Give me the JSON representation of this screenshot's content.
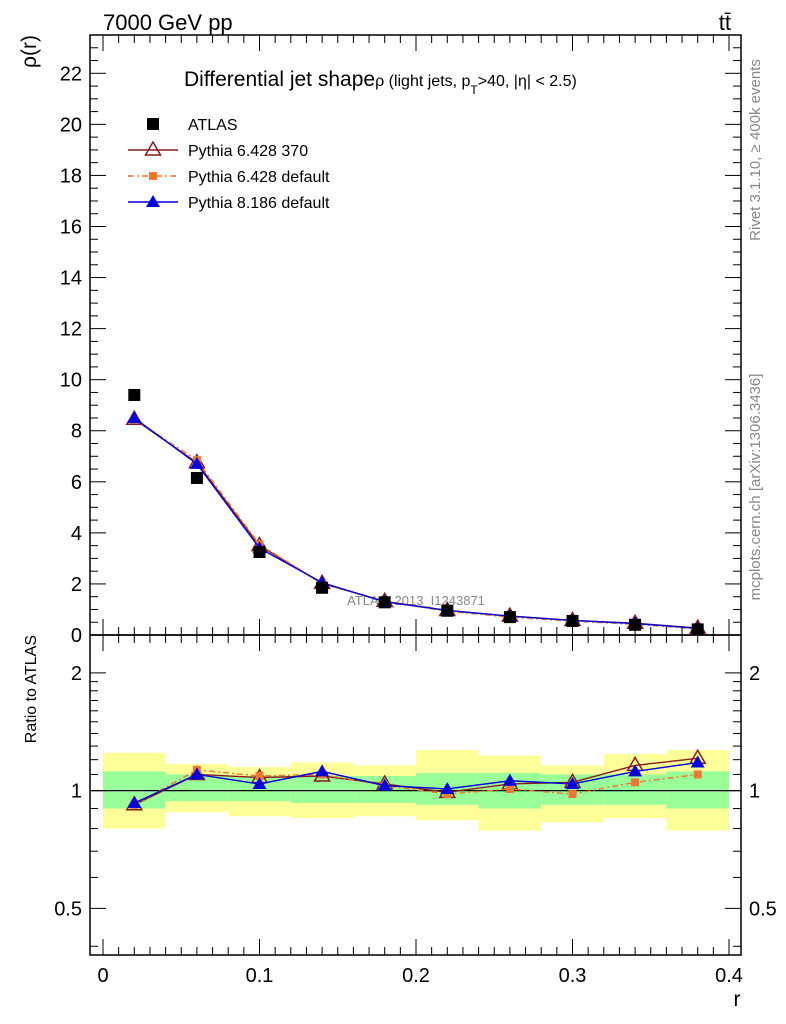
{
  "header": {
    "energy_label": "7000 GeV pp",
    "process_label": "tt̄"
  },
  "side_labels": {
    "rivet": "Rivet 3.1.10, ≥ 400k events",
    "mcplots": "mcplots.cern.ch [arXiv:1306.3436]"
  },
  "chart_data": [
    {
      "type": "line",
      "title_main": "Differential jet shape",
      "title_sub": "ρ (light jets, p",
      "title_sub_sub": "T",
      "title_sub_end": ">40, |η| < 2.5)",
      "ylabel": "ρ(r)",
      "xlim": [
        0,
        0.4
      ],
      "ylim": [
        0,
        23.5
      ],
      "y_ticks": [
        "0",
        "2",
        "4",
        "6",
        "8",
        "10",
        "12",
        "14",
        "16",
        "18",
        "20",
        "22"
      ],
      "y_tick_values": [
        0,
        2,
        4,
        6,
        8,
        10,
        12,
        14,
        16,
        18,
        20,
        22
      ],
      "watermark": "ATLAS_2013_I1243871",
      "legend_position": "top-left",
      "series": [
        {
          "name": "ATLAS",
          "marker": "square",
          "color": "#000000",
          "x": [
            0.02,
            0.06,
            0.1,
            0.14,
            0.18,
            0.22,
            0.26,
            0.3,
            0.34,
            0.38
          ],
          "values": [
            9.4,
            6.15,
            3.25,
            1.85,
            1.28,
            0.95,
            0.7,
            0.55,
            0.4,
            0.22
          ]
        },
        {
          "name": "Pythia 6.428 370",
          "marker": "open-triangle",
          "color": "#8b1a1a",
          "line": "solid",
          "x": [
            0.02,
            0.06,
            0.1,
            0.14,
            0.18,
            0.22,
            0.26,
            0.3,
            0.34,
            0.38
          ],
          "values": [
            8.45,
            6.75,
            3.5,
            2.02,
            1.32,
            0.96,
            0.74,
            0.57,
            0.46,
            0.27
          ]
        },
        {
          "name": "Pythia 6.428 default",
          "marker": "square-small",
          "color": "#ee7733",
          "line": "dashdot",
          "x": [
            0.02,
            0.06,
            0.1,
            0.14,
            0.18,
            0.22,
            0.26,
            0.3,
            0.34,
            0.38
          ],
          "values": [
            8.45,
            6.85,
            3.55,
            2.03,
            1.32,
            0.93,
            0.7,
            0.54,
            0.42,
            0.24
          ]
        },
        {
          "name": "Pythia 8.186 default",
          "marker": "triangle",
          "color": "#0000dd",
          "line": "solid",
          "x": [
            0.02,
            0.06,
            0.1,
            0.14,
            0.18,
            0.22,
            0.26,
            0.3,
            0.34,
            0.38
          ],
          "values": [
            8.5,
            6.7,
            3.4,
            2.05,
            1.3,
            0.96,
            0.74,
            0.57,
            0.45,
            0.26
          ]
        }
      ]
    },
    {
      "type": "line",
      "ylabel": "Ratio to ATLAS",
      "xlabel": "r",
      "xlim": [
        0,
        0.4
      ],
      "ylim": [
        0.38,
        2.5
      ],
      "log_y": true,
      "x_ticks": [
        "0",
        "0.1",
        "0.2",
        "0.3",
        "0.4"
      ],
      "x_tick_values": [
        0,
        0.1,
        0.2,
        0.3,
        0.4
      ],
      "y_ticks": [
        "0.5",
        "1",
        "2"
      ],
      "y_tick_values": [
        0.5,
        1,
        2
      ],
      "reference_line": 1,
      "bins": [
        [
          0.0,
          0.04
        ],
        [
          0.04,
          0.08
        ],
        [
          0.08,
          0.12
        ],
        [
          0.12,
          0.16
        ],
        [
          0.16,
          0.2
        ],
        [
          0.2,
          0.24
        ],
        [
          0.24,
          0.28
        ],
        [
          0.28,
          0.32
        ],
        [
          0.32,
          0.36
        ],
        [
          0.36,
          0.4
        ]
      ],
      "band_stat": {
        "color": "#99ff99",
        "low": [
          0.9,
          0.94,
          0.94,
          0.93,
          0.93,
          0.92,
          0.9,
          0.92,
          0.92,
          0.9
        ],
        "high": [
          1.12,
          1.1,
          1.09,
          1.09,
          1.09,
          1.11,
          1.11,
          1.1,
          1.1,
          1.12
        ]
      },
      "band_total": {
        "color": "#ffff99",
        "low": [
          0.8,
          0.88,
          0.86,
          0.85,
          0.86,
          0.84,
          0.79,
          0.83,
          0.85,
          0.79
        ],
        "high": [
          1.25,
          1.17,
          1.15,
          1.18,
          1.16,
          1.27,
          1.23,
          1.16,
          1.24,
          1.27
        ]
      },
      "series": [
        {
          "name": "Pythia 6.428 370",
          "marker": "open-triangle",
          "color": "#8b1a1a",
          "line": "solid",
          "x": [
            0.02,
            0.06,
            0.1,
            0.14,
            0.18,
            0.22,
            0.26,
            0.3,
            0.34,
            0.38
          ],
          "values": [
            0.92,
            1.1,
            1.08,
            1.09,
            1.04,
            0.99,
            1.04,
            1.05,
            1.16,
            1.21
          ]
        },
        {
          "name": "Pythia 6.428 default",
          "marker": "square-small",
          "color": "#ee7733",
          "line": "dashdot",
          "x": [
            0.02,
            0.06,
            0.1,
            0.14,
            0.18,
            0.22,
            0.26,
            0.3,
            0.34,
            0.38
          ],
          "values": [
            0.92,
            1.13,
            1.09,
            1.1,
            1.03,
            0.98,
            1.01,
            0.98,
            1.05,
            1.1
          ]
        },
        {
          "name": "Pythia 8.186 default",
          "marker": "triangle",
          "color": "#0000dd",
          "line": "solid",
          "x": [
            0.02,
            0.06,
            0.1,
            0.14,
            0.18,
            0.22,
            0.26,
            0.3,
            0.34,
            0.38
          ],
          "values": [
            0.93,
            1.1,
            1.04,
            1.12,
            1.03,
            1.01,
            1.06,
            1.04,
            1.12,
            1.18
          ]
        }
      ]
    }
  ]
}
